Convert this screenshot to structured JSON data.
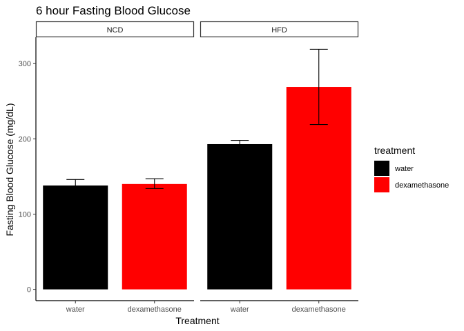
{
  "chart_data": {
    "type": "bar",
    "title": "6 hour Fasting Blood Glucose",
    "xlabel": "Treatment",
    "ylabel": "Fasting Blood Glucose (mg/dL)",
    "ylim": [
      -15,
      335
    ],
    "yticks": [
      0,
      100,
      200,
      300
    ],
    "categories": [
      "water",
      "dexamethasone"
    ],
    "facets": [
      {
        "label": "NCD",
        "bars": [
          {
            "category": "water",
            "value": 138,
            "err_low": 130,
            "err_high": 146
          },
          {
            "category": "dexamethasone",
            "value": 140,
            "err_low": 134,
            "err_high": 147
          }
        ]
      },
      {
        "label": "HFD",
        "bars": [
          {
            "category": "water",
            "value": 193,
            "err_low": 189,
            "err_high": 198
          },
          {
            "category": "dexamethasone",
            "value": 269,
            "err_low": 219,
            "err_high": 319
          }
        ]
      }
    ],
    "legend": {
      "title": "treatment",
      "placement": "right",
      "entries": [
        {
          "label": "water",
          "color": "#000000"
        },
        {
          "label": "dexamethasone",
          "color": "#ff0000"
        }
      ]
    },
    "grid": false
  }
}
